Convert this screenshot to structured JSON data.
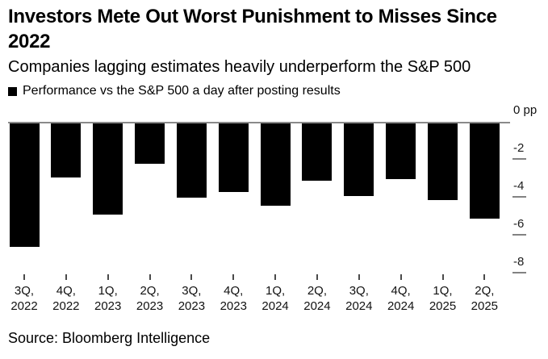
{
  "header": {
    "title": "Investors Mete Out Worst Punishment to Misses Since 2022",
    "subtitle": "Companies lagging estimates heavily underperform the S&P 500"
  },
  "legend": {
    "marker": "black-square",
    "marker_color": "#000000",
    "label": "Performance vs the S&P 500 a day after posting results"
  },
  "chart_data": {
    "type": "bar",
    "title": "Investors Mete Out Worst Punishment to Misses Since 2022",
    "subtitle": "Companies lagging estimates heavily underperform the S&P 500",
    "series_name": "Performance vs the S&P 500 a day after posting results",
    "categories": [
      "3Q, 2022",
      "4Q, 2022",
      "1Q, 2023",
      "2Q, 2023",
      "3Q, 2023",
      "4Q, 2023",
      "1Q, 2024",
      "2Q, 2024",
      "3Q, 2024",
      "4Q, 2024",
      "1Q, 2025",
      "2Q, 2025"
    ],
    "values": [
      -6.6,
      -2.9,
      -4.9,
      -2.2,
      -4.0,
      -3.7,
      -4.4,
      -3.1,
      -3.9,
      -3.0,
      -4.1,
      -5.1
    ],
    "unit": "pp",
    "xlabel": "",
    "ylabel": "",
    "y_axis": {
      "zero_label": "0 pp",
      "ticks": [
        -2,
        -4,
        -6,
        -8
      ],
      "ylim": [
        -8.5,
        0
      ]
    },
    "bar_color": "#000000",
    "grid": false,
    "legend_position": "top-left",
    "axis_side": "right"
  },
  "footer": {
    "source": "Source: Bloomberg Intelligence"
  }
}
